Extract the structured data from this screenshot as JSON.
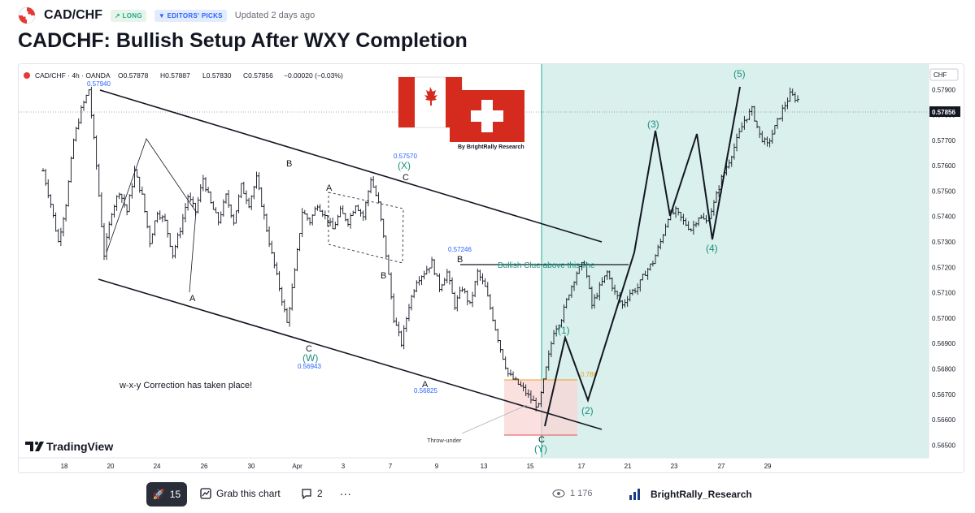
{
  "header": {
    "symbol": "CAD/CHF",
    "badge_long": "LONG",
    "badge_editors": "EDITORS' PICKS",
    "updated": "Updated 2 days ago",
    "title": "CADCHF: Bullish Setup After WXY Completion"
  },
  "chart_data": {
    "type": "candlestick",
    "legend": "CAD/CHF · 4h · OANDA",
    "ohlc": {
      "o": "O0.57878",
      "h": "H0.57887",
      "l": "L0.57830",
      "c": "C0.57856",
      "chg": "−0.00020 (−0.03%)"
    },
    "currency": "CHF",
    "last_price": "0.57856",
    "ylim": [
      0.5645,
      0.58
    ],
    "y_ticks": [
      "0.57900",
      "0.57800",
      "0.57700",
      "0.57600",
      "0.57500",
      "0.57400",
      "0.57300",
      "0.57200",
      "0.57100",
      "0.57000",
      "0.56900",
      "0.56800",
      "0.56700",
      "0.56600",
      "0.56500"
    ],
    "x_ticks": [
      "18",
      "20",
      "24",
      "26",
      "30",
      "Apr",
      "3",
      "7",
      "9",
      "13",
      "15",
      "17",
      "21",
      "23",
      "27",
      "29"
    ],
    "close_path": [
      [
        0,
        0.5758
      ],
      [
        3,
        0.5745
      ],
      [
        6,
        0.573
      ],
      [
        9,
        0.5745
      ],
      [
        12,
        0.577
      ],
      [
        15,
        0.5782
      ],
      [
        18,
        0.579
      ],
      [
        21,
        0.576
      ],
      [
        24,
        0.5725
      ],
      [
        27,
        0.5742
      ],
      [
        30,
        0.575
      ],
      [
        33,
        0.5742
      ],
      [
        36,
        0.5758
      ],
      [
        39,
        0.5748
      ],
      [
        42,
        0.573
      ],
      [
        45,
        0.5742
      ],
      [
        48,
        0.5738
      ],
      [
        51,
        0.5725
      ],
      [
        54,
        0.5735
      ],
      [
        57,
        0.5748
      ],
      [
        60,
        0.5742
      ],
      [
        63,
        0.5755
      ],
      [
        66,
        0.5745
      ],
      [
        69,
        0.5738
      ],
      [
        72,
        0.5748
      ],
      [
        75,
        0.5738
      ],
      [
        78,
        0.5752
      ],
      [
        81,
        0.5745
      ],
      [
        84,
        0.5755
      ],
      [
        87,
        0.574
      ],
      [
        90,
        0.5725
      ],
      [
        93,
        0.5712
      ],
      [
        96,
        0.5698
      ],
      [
        99,
        0.5718
      ],
      [
        102,
        0.5742
      ],
      [
        105,
        0.5738
      ],
      [
        108,
        0.5745
      ],
      [
        111,
        0.574
      ],
      [
        114,
        0.5735
      ],
      [
        117,
        0.5742
      ],
      [
        120,
        0.5738
      ],
      [
        123,
        0.5745
      ],
      [
        126,
        0.574
      ],
      [
        129,
        0.5755
      ],
      [
        132,
        0.5745
      ],
      [
        135,
        0.5725
      ],
      [
        138,
        0.57
      ],
      [
        141,
        0.569
      ],
      [
        144,
        0.5705
      ],
      [
        147,
        0.5715
      ],
      [
        150,
        0.5718
      ],
      [
        153,
        0.5722
      ],
      [
        156,
        0.5712
      ],
      [
        159,
        0.5718
      ],
      [
        162,
        0.5705
      ],
      [
        165,
        0.5712
      ],
      [
        168,
        0.5705
      ],
      [
        171,
        0.5718
      ],
      [
        174,
        0.5712
      ],
      [
        177,
        0.57
      ],
      [
        180,
        0.5688
      ],
      [
        183,
        0.5678
      ],
      [
        186,
        0.5675
      ],
      [
        189,
        0.5672
      ],
      [
        192,
        0.5668
      ],
      [
        195,
        0.5665
      ],
      [
        198,
        0.568
      ],
      [
        201,
        0.5695
      ],
      [
        204,
        0.57
      ],
      [
        207,
        0.571
      ],
      [
        210,
        0.5718
      ],
      [
        213,
        0.5722
      ],
      [
        216,
        0.5705
      ],
      [
        219,
        0.5712
      ],
      [
        222,
        0.5718
      ],
      [
        225,
        0.571
      ],
      [
        228,
        0.5705
      ],
      [
        231,
        0.571
      ],
      [
        234,
        0.5712
      ],
      [
        237,
        0.5718
      ],
      [
        240,
        0.5722
      ],
      [
        243,
        0.573
      ],
      [
        246,
        0.574
      ],
      [
        249,
        0.5742
      ],
      [
        252,
        0.5738
      ],
      [
        255,
        0.5735
      ],
      [
        258,
        0.574
      ],
      [
        261,
        0.5738
      ],
      [
        264,
        0.5745
      ],
      [
        267,
        0.5755
      ],
      [
        270,
        0.5762
      ],
      [
        273,
        0.577
      ],
      [
        276,
        0.5778
      ],
      [
        279,
        0.5782
      ],
      [
        282,
        0.5772
      ],
      [
        285,
        0.5768
      ],
      [
        288,
        0.5775
      ],
      [
        291,
        0.5782
      ],
      [
        294,
        0.5788
      ],
      [
        297,
        0.5786
      ]
    ],
    "annotations": {
      "wave_labels": [
        "B",
        "A",
        "C",
        "(W)",
        "B",
        "A",
        "C",
        "(X)",
        "A",
        "B",
        "C",
        "(Y)",
        "(1)",
        "(2)",
        "(3)",
        "(4)",
        "(5)"
      ],
      "price_labels": [
        "0.57940",
        "0.57570",
        "0.57246",
        "0.56943",
        "0.56825"
      ],
      "texts": [
        "w-x-y Correction has taken place!",
        "Bullish Clue above this line",
        "Throw-under",
        "By BrightRally Research",
        "0.786"
      ]
    }
  },
  "watermark": "TradingView",
  "footer": {
    "boosts": "15",
    "grab_label": "Grab this chart",
    "comments": "2",
    "views": "1 176",
    "author": "BrightRally_Research"
  },
  "colors": {
    "accent_green": "#22ab94",
    "label_blue": "#2962ff",
    "shade": "#daf0ec",
    "wave_teal": "#1b8f80"
  }
}
